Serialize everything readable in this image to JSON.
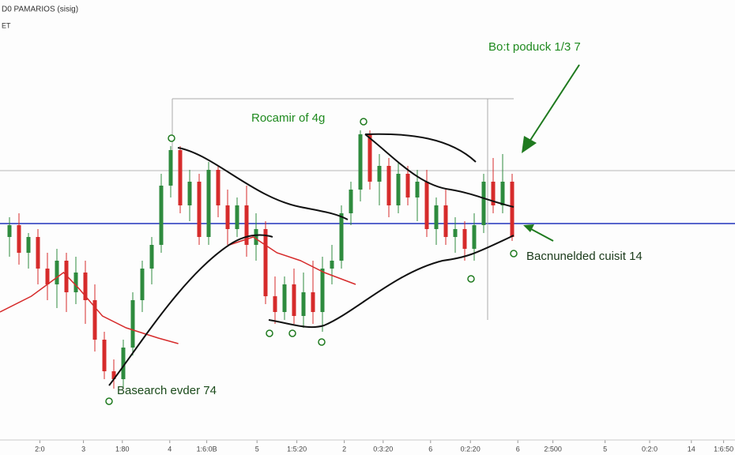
{
  "chart_data": {
    "type": "candlestick",
    "header": [
      "D0 PAMARIOS (sisig)",
      "ET"
    ],
    "annotations": [
      "Bo:t poduck 1/3 7",
      "Rocamir of 4g",
      "Bacnunelded cuisit 14",
      "Basearch evder 74"
    ],
    "x": [
      1,
      2,
      3,
      4,
      5,
      6,
      7,
      8,
      9,
      10,
      11,
      12,
      13,
      14,
      15,
      16,
      17,
      18,
      19,
      20,
      21,
      22,
      23,
      24,
      25,
      26,
      27,
      28,
      29,
      30,
      31,
      32,
      33,
      34,
      35,
      36,
      37,
      38,
      39,
      40,
      41,
      42,
      43,
      44,
      45,
      46,
      47,
      48,
      49,
      50,
      51,
      52,
      53,
      54
    ],
    "open": [
      260,
      275,
      240,
      260,
      220,
      200,
      230,
      190,
      215,
      180,
      130,
      90,
      80,
      120,
      180,
      220,
      250,
      325,
      370,
      300,
      330,
      260,
      345,
      300,
      270,
      300,
      250,
      270,
      185,
      165,
      200,
      160,
      190,
      165,
      220,
      230,
      290,
      320,
      390,
      330,
      350,
      300,
      340,
      310,
      330,
      270,
      300,
      260,
      270,
      245,
      275,
      330,
      300,
      330
    ],
    "high": [
      285,
      290,
      265,
      270,
      240,
      245,
      240,
      235,
      230,
      200,
      140,
      105,
      130,
      190,
      230,
      260,
      340,
      375,
      375,
      345,
      340,
      355,
      350,
      320,
      310,
      325,
      290,
      280,
      210,
      210,
      220,
      215,
      230,
      235,
      250,
      300,
      330,
      395,
      395,
      365,
      360,
      355,
      350,
      345,
      345,
      310,
      320,
      285,
      280,
      290,
      340,
      360,
      365,
      340
    ],
    "low": [
      235,
      225,
      220,
      200,
      180,
      170,
      165,
      175,
      150,
      115,
      80,
      68,
      70,
      110,
      165,
      200,
      240,
      310,
      290,
      280,
      250,
      250,
      285,
      250,
      260,
      235,
      230,
      175,
      150,
      155,
      150,
      145,
      150,
      140,
      200,
      220,
      275,
      305,
      320,
      300,
      285,
      290,
      300,
      280,
      260,
      250,
      250,
      240,
      230,
      230,
      265,
      290,
      290,
      255
    ],
    "close": [
      275,
      240,
      260,
      220,
      200,
      230,
      190,
      215,
      180,
      130,
      90,
      80,
      120,
      180,
      220,
      250,
      325,
      370,
      300,
      330,
      260,
      345,
      300,
      270,
      300,
      250,
      270,
      185,
      165,
      200,
      160,
      190,
      165,
      220,
      230,
      290,
      320,
      390,
      330,
      350,
      300,
      340,
      310,
      330,
      270,
      300,
      260,
      270,
      245,
      275,
      330,
      300,
      330,
      260
    ],
    "up_color": "#2e8b3e",
    "down_color": "#d62b2b",
    "ma": {
      "color": "#d62b2b",
      "x": [
        0,
        3.3,
        6.7,
        8.3,
        10.8,
        13.3,
        16.7,
        18.8,
        21,
        24.2,
        26.7,
        29.2,
        31.7,
        34.2,
        37.5
      ],
      "values": [
        165,
        185,
        215,
        195,
        160,
        145,
        132,
        125,
        null,
        250,
        260,
        240,
        230,
        215,
        200
      ]
    },
    "hlines": [
      {
        "value": 277,
        "color": "#2233bb"
      },
      {
        "value": 344,
        "color": "#b8b8b8"
      }
    ],
    "xlim": [
      0,
      77.5
    ],
    "ylim": [
      0,
      560
    ],
    "xticks": [
      {
        "value": 4.2,
        "label": "2:0"
      },
      {
        "value": 8.8,
        "label": "3"
      },
      {
        "value": 12.9,
        "label": "1:80"
      },
      {
        "value": 17.9,
        "label": "4"
      },
      {
        "value": 21.8,
        "label": "1:6:0B"
      },
      {
        "value": 27.1,
        "label": "5"
      },
      {
        "value": 31.3,
        "label": "1:5:20"
      },
      {
        "value": 36.3,
        "label": "2"
      },
      {
        "value": 40.4,
        "label": "0:3:20"
      },
      {
        "value": 45.4,
        "label": "6"
      },
      {
        "value": 49.6,
        "label": "0:2:20"
      },
      {
        "value": 54.6,
        "label": "6"
      },
      {
        "value": 58.3,
        "label": "2:500"
      },
      {
        "value": 63.8,
        "label": "5"
      },
      {
        "value": 68.5,
        "label": "0:2:0"
      },
      {
        "value": 72.9,
        "label": "14"
      },
      {
        "value": 76.3,
        "label": "1:6:50"
      }
    ]
  }
}
